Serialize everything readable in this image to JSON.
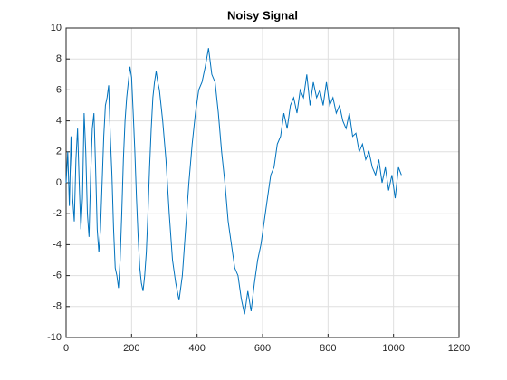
{
  "chart_data": {
    "type": "line",
    "title": "Noisy Signal",
    "x": [
      0,
      5,
      10,
      15,
      20,
      25,
      30,
      35,
      40,
      45,
      50,
      55,
      60,
      65,
      70,
      75,
      80,
      85,
      90,
      95,
      100,
      105,
      110,
      115,
      120,
      125,
      130,
      135,
      140,
      145,
      150,
      155,
      160,
      165,
      170,
      175,
      180,
      185,
      190,
      195,
      200,
      205,
      210,
      215,
      220,
      225,
      230,
      235,
      240,
      245,
      250,
      255,
      260,
      265,
      270,
      275,
      280,
      285,
      295,
      305,
      315,
      325,
      335,
      345,
      355,
      365,
      375,
      385,
      395,
      405,
      415,
      425,
      435,
      445,
      455,
      465,
      475,
      485,
      495,
      505,
      515,
      525,
      535,
      545,
      555,
      565,
      575,
      585,
      595,
      605,
      615,
      625,
      635,
      645,
      655,
      665,
      675,
      685,
      695,
      705,
      715,
      725,
      735,
      745,
      755,
      765,
      775,
      785,
      795,
      805,
      815,
      825,
      835,
      845,
      855,
      865,
      875,
      885,
      895,
      905,
      915,
      925,
      935,
      945,
      955,
      965,
      975,
      985,
      995,
      1005,
      1015,
      1024
    ],
    "series": [
      {
        "color": "#0072bd",
        "values": [
          0,
          2,
          -1.5,
          3,
          -1,
          -2.5,
          1.5,
          3.5,
          0,
          -3,
          -1,
          4.5,
          2,
          -2,
          -3.5,
          0.5,
          3.5,
          4.5,
          1,
          -3,
          -4.5,
          -3,
          0,
          3,
          5,
          5.5,
          6.3,
          3,
          0.5,
          -3,
          -5.5,
          -6,
          -6.8,
          -5,
          -2,
          1.5,
          4,
          5.5,
          6.5,
          7.5,
          6.8,
          4.5,
          2,
          -1,
          -3.5,
          -5.5,
          -6.5,
          -7,
          -6,
          -4.5,
          -2,
          1,
          3.5,
          5.5,
          6.5,
          7.2,
          6.5,
          6,
          4,
          1.5,
          -2,
          -5,
          -6.5,
          -7.6,
          -6,
          -3,
          0,
          2.5,
          4.5,
          6,
          6.5,
          7.5,
          8.7,
          7,
          6.5,
          4.5,
          2,
          0,
          -2.5,
          -4,
          -5.5,
          -6,
          -7.5,
          -8.5,
          -7,
          -8.3,
          -6.5,
          -5,
          -4,
          -2.5,
          -1,
          0.5,
          1,
          2.5,
          3,
          4.5,
          3.5,
          5,
          5.5,
          4.5,
          6,
          5.5,
          7,
          5,
          6.5,
          5.5,
          6,
          5,
          6.5,
          5,
          5.5,
          4.5,
          5,
          4,
          3.5,
          4.5,
          3,
          3.2,
          2,
          2.5,
          1.5,
          2,
          1,
          0.5,
          1.5,
          0,
          1,
          -0.5,
          0.5,
          -1,
          1,
          0.5
        ]
      }
    ],
    "xlim": [
      0,
      1200
    ],
    "xticks": [
      0,
      200,
      400,
      600,
      800,
      1000,
      1200
    ],
    "ylim": [
      -10,
      10
    ],
    "yticks": [
      -10,
      -8,
      -6,
      -4,
      -2,
      0,
      2,
      4,
      6,
      8,
      10
    ],
    "grid": true
  }
}
